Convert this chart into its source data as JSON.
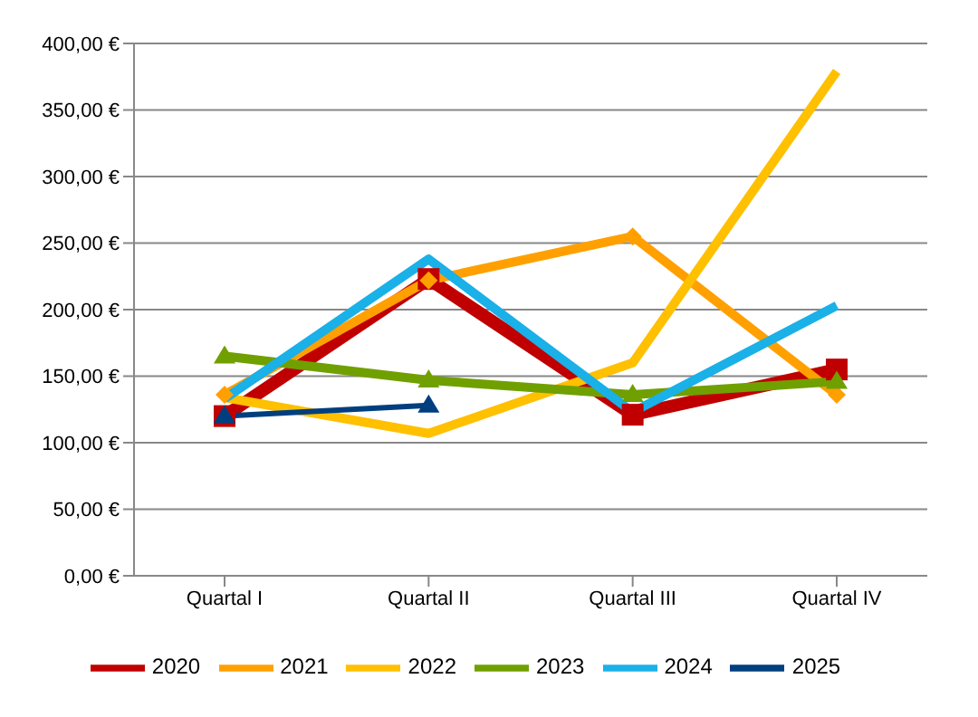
{
  "chart_data": {
    "type": "line",
    "categories": [
      "Quartal I",
      "Quartal II",
      "Quartal III",
      "Quartal IV"
    ],
    "series": [
      {
        "name": "2020",
        "color": "#c00000",
        "marker": "square",
        "values": [
          120,
          223,
          121,
          155
        ]
      },
      {
        "name": "2021",
        "color": "#ffa000",
        "marker": "diamond",
        "values": [
          136,
          222,
          255,
          136
        ]
      },
      {
        "name": "2022",
        "color": "#ffc000",
        "marker": "none",
        "values": [
          134,
          107,
          160,
          379
        ]
      },
      {
        "name": "2023",
        "color": "#70a000",
        "marker": "triangle",
        "values": [
          165,
          147,
          136,
          146
        ]
      },
      {
        "name": "2024",
        "color": "#1ab0e8",
        "marker": "none",
        "values": [
          133,
          238,
          123,
          203
        ]
      },
      {
        "name": "2025",
        "color": "#003f7f",
        "marker": "triangle",
        "values": [
          120,
          128,
          null,
          null
        ]
      }
    ],
    "ylim": [
      0,
      400
    ],
    "yticks": [
      {
        "value": 0,
        "label": "0,00 €"
      },
      {
        "value": 50,
        "label": "50,00 €"
      },
      {
        "value": 100,
        "label": "100,00 €"
      },
      {
        "value": 150,
        "label": "150,00 €"
      },
      {
        "value": 200,
        "label": "200,00 €"
      },
      {
        "value": 250,
        "label": "250,00 €"
      },
      {
        "value": 300,
        "label": "300,00 €"
      },
      {
        "value": 350,
        "label": "350,00 €"
      },
      {
        "value": 400,
        "label": "400,00 €"
      }
    ],
    "grid": "y",
    "legend": "bottom",
    "line_style": "solid"
  }
}
